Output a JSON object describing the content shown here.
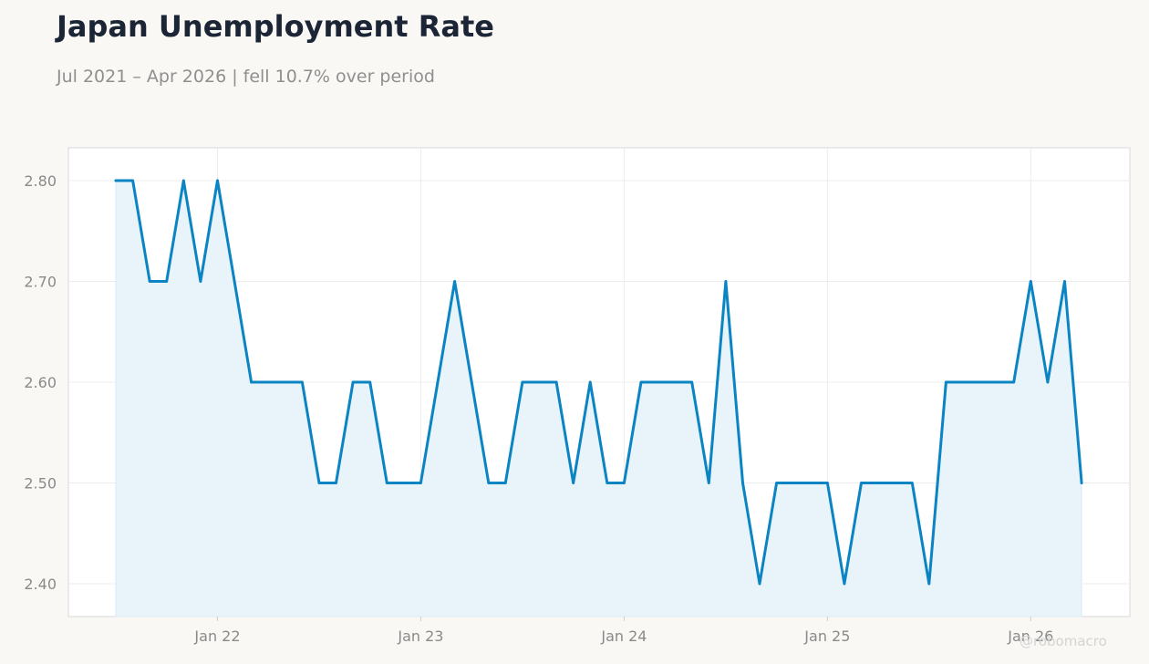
{
  "header": {
    "title": "Japan Unemployment Rate",
    "subtitle": "Jul 2021 – Apr 2026 | fell 10.7% over period"
  },
  "watermark": "@robomacro",
  "colors": {
    "line": "#0b84c4",
    "fill": "#e9f3fa",
    "grid": "#ececec",
    "axis_text": "#8a8a8a",
    "plot_border": "#d8d8d8",
    "plot_background": "#ffffff",
    "page_background": "#f9f8f5"
  },
  "chart_data": {
    "type": "area",
    "title": "Japan Unemployment Rate",
    "subtitle": "Jul 2021 – Apr 2026 | fell 10.7% over period",
    "xlabel": "",
    "ylabel": "",
    "x_start": "2021-07",
    "x_end": "2026-04",
    "x_ticks": [
      {
        "date": "2022-01",
        "label": "Jan 22"
      },
      {
        "date": "2023-01",
        "label": "Jan 23"
      },
      {
        "date": "2024-01",
        "label": "Jan 24"
      },
      {
        "date": "2025-01",
        "label": "Jan 25"
      },
      {
        "date": "2026-01",
        "label": "Jan 26"
      }
    ],
    "y_ticks": [
      2.4,
      2.5,
      2.6,
      2.7,
      2.8
    ],
    "y_tick_labels": [
      "2.40",
      "2.50",
      "2.60",
      "2.70",
      "2.80"
    ],
    "ylim": [
      2.368,
      2.832
    ],
    "grid": true,
    "series": [
      {
        "x": [
          "2021-07",
          "2021-08",
          "2021-09",
          "2021-10",
          "2021-11",
          "2021-12",
          "2022-01",
          "2022-02",
          "2022-03",
          "2022-04",
          "2022-05",
          "2022-06",
          "2022-07",
          "2022-08",
          "2022-09",
          "2022-10",
          "2022-11",
          "2022-12",
          "2023-01",
          "2023-02",
          "2023-03",
          "2023-04",
          "2023-05",
          "2023-06",
          "2023-07",
          "2023-08",
          "2023-09",
          "2023-10",
          "2023-11",
          "2023-12",
          "2024-01",
          "2024-02",
          "2024-03",
          "2024-04",
          "2024-05",
          "2024-06",
          "2024-07",
          "2024-08",
          "2024-09",
          "2024-10",
          "2024-11",
          "2024-12",
          "2025-01",
          "2025-02",
          "2025-03",
          "2025-04",
          "2025-05",
          "2025-06",
          "2025-07",
          "2025-08",
          "2025-09",
          "2025-10",
          "2025-11",
          "2025-12",
          "2026-01",
          "2026-02",
          "2026-03",
          "2026-04"
        ],
        "values": [
          2.8,
          2.8,
          2.7,
          2.7,
          2.8,
          2.7,
          2.8,
          2.7,
          2.6,
          2.6,
          2.6,
          2.6,
          2.5,
          2.5,
          2.6,
          2.6,
          2.5,
          2.5,
          2.5,
          2.6,
          2.7,
          2.6,
          2.5,
          2.5,
          2.6,
          2.6,
          2.6,
          2.5,
          2.6,
          2.5,
          2.5,
          2.6,
          2.6,
          2.6,
          2.6,
          2.5,
          2.7,
          2.5,
          2.4,
          2.5,
          2.5,
          2.5,
          2.5,
          2.4,
          2.5,
          2.5,
          2.5,
          2.5,
          2.4,
          2.6,
          2.6,
          2.6,
          2.6,
          2.6,
          2.7,
          2.6,
          2.7,
          2.5
        ]
      }
    ]
  }
}
